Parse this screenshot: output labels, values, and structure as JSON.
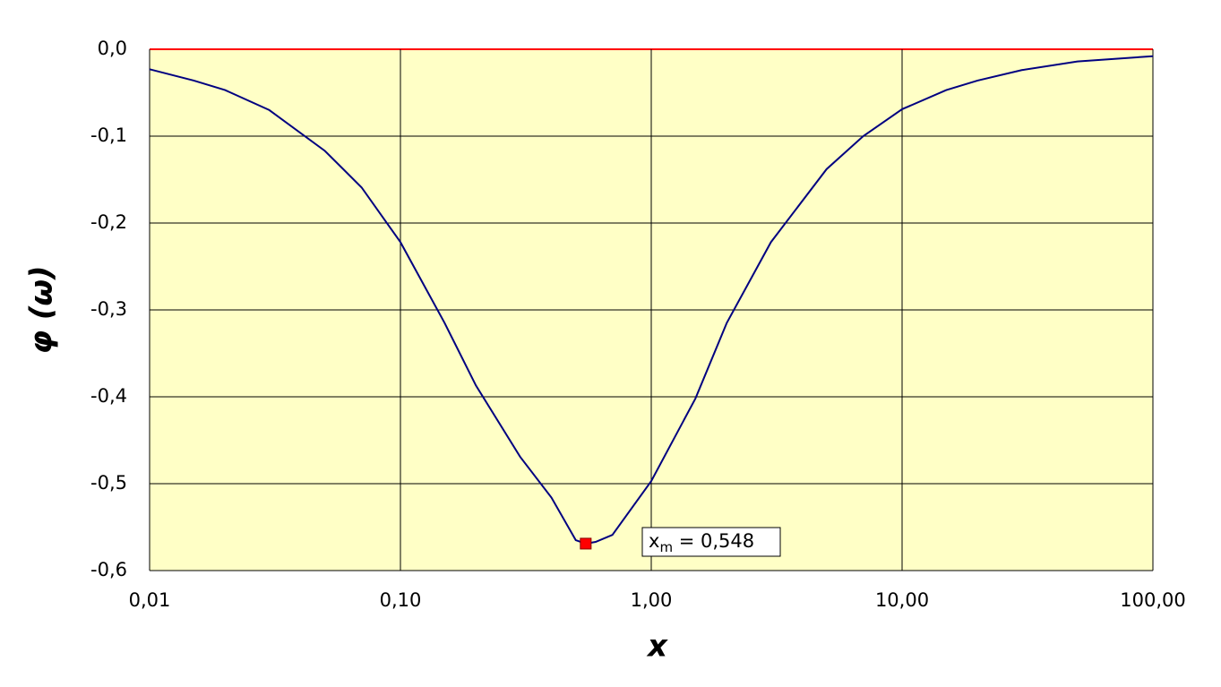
{
  "chart_data": {
    "type": "line",
    "x_label": "x",
    "y_label": "φ (ω)",
    "x": [
      0.01,
      0.015,
      0.02,
      0.03,
      0.05,
      0.07,
      0.1,
      0.15,
      0.2,
      0.3,
      0.4,
      0.5,
      0.548,
      0.6,
      0.7,
      1.0,
      1.5,
      2,
      3,
      5,
      7,
      10,
      15,
      20,
      30,
      50,
      100
    ],
    "series": [
      {
        "color": "#000080",
        "values": [
          -0.023,
          -0.036,
          -0.047,
          -0.07,
          -0.117,
          -0.159,
          -0.222,
          -0.315,
          -0.387,
          -0.469,
          -0.516,
          -0.565,
          -0.569,
          -0.567,
          -0.559,
          -0.497,
          -0.402,
          -0.315,
          -0.222,
          -0.138,
          -0.1,
          -0.069,
          -0.047,
          -0.036,
          -0.024,
          -0.014,
          -0.008
        ]
      }
    ],
    "marker": {
      "x": 0.548,
      "y": -0.569,
      "color": "#ff0000"
    },
    "annotation": {
      "base": "x",
      "sub": "m",
      "rest": " = 0,548"
    },
    "xlim": [
      0.01,
      100
    ],
    "x_log": true,
    "xticks": [
      {
        "value": 0.01,
        "label": "0,01"
      },
      {
        "value": 0.1,
        "label": "0,10"
      },
      {
        "value": 1,
        "label": "1,00"
      },
      {
        "value": 10,
        "label": "10,00"
      },
      {
        "value": 100,
        "label": "100,00"
      }
    ],
    "ylim": [
      -0.6,
      0
    ],
    "yticks": [
      {
        "value": -0.6,
        "label": "-0,6"
      },
      {
        "value": -0.5,
        "label": "-0,5"
      },
      {
        "value": -0.4,
        "label": "-0,4"
      },
      {
        "value": -0.3,
        "label": "-0,3"
      },
      {
        "value": -0.2,
        "label": "-0,2"
      },
      {
        "value": -0.1,
        "label": "-0,1"
      },
      {
        "value": 0,
        "label": "0,0"
      }
    ],
    "grid": true,
    "background": "#ffffc6",
    "zero_line_color": "#ff0000"
  }
}
